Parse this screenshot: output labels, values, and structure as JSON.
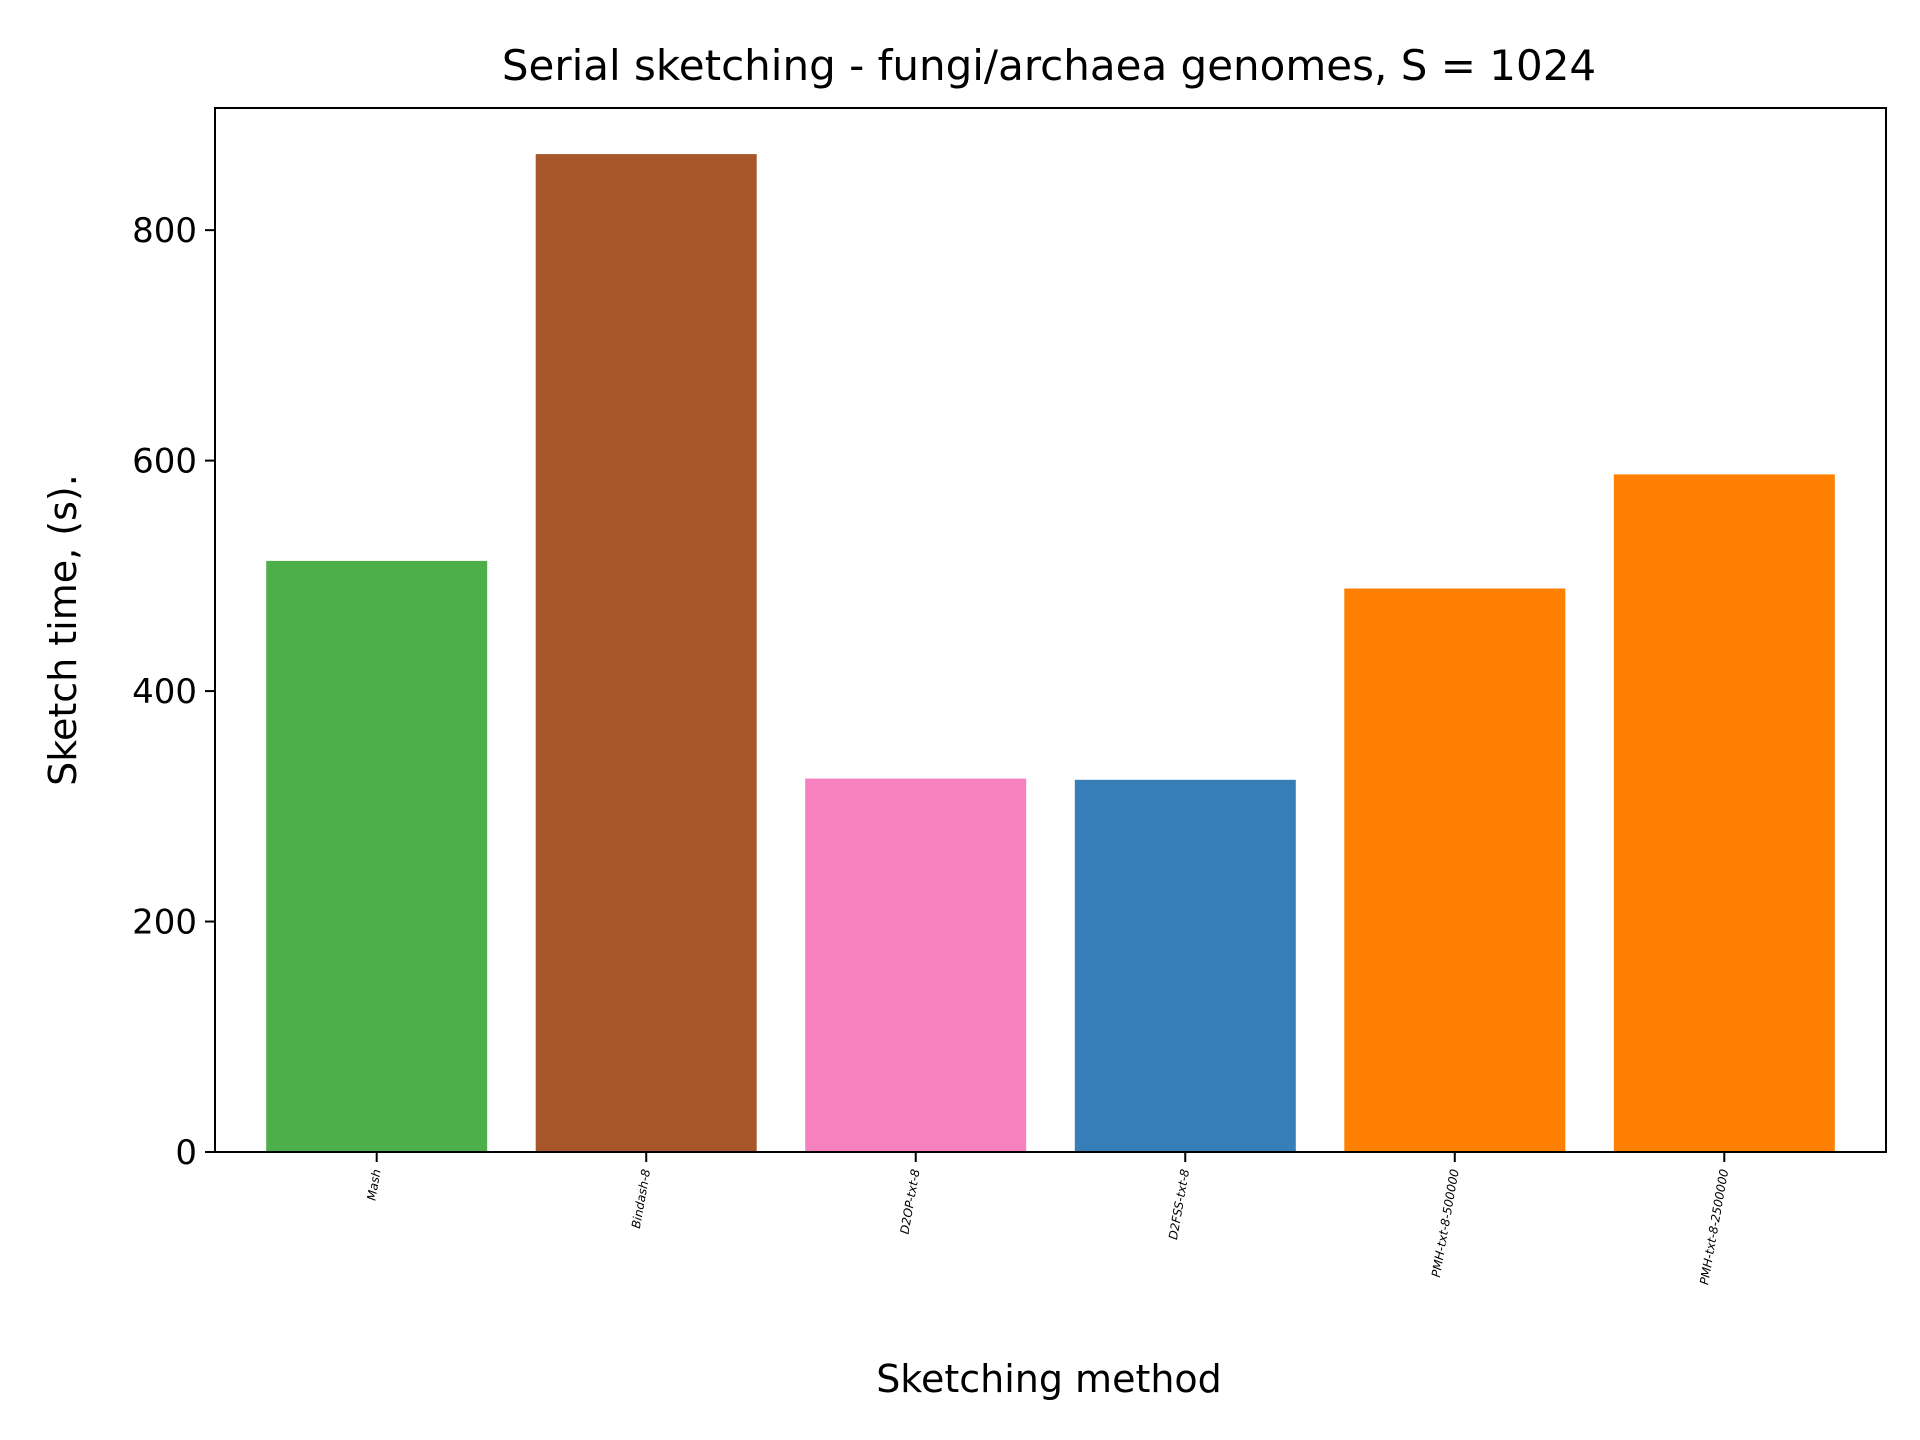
{
  "chart_data": {
    "type": "bar",
    "title": "Serial sketching - fungi/archaea genomes, S = 1024",
    "xlabel": "Sketching method",
    "ylabel": "Sketch time, (s).",
    "categories": [
      "Mash",
      "Bindash-8",
      "D2OP-txt-8",
      "D2FSS-txt-8",
      "PMH-txt-8-500000",
      "PMH-txt-8-2500000"
    ],
    "values": [
      513,
      866,
      324,
      323,
      489,
      588
    ],
    "colors": [
      "#4daf4a",
      "#a65628",
      "#f781bf",
      "#377eb8",
      "#ff7f00",
      "#ff7f00"
    ],
    "ylim": [
      0,
      906
    ],
    "yticks": [
      0,
      200,
      400,
      600,
      800
    ],
    "grid": false,
    "legend": "none"
  }
}
